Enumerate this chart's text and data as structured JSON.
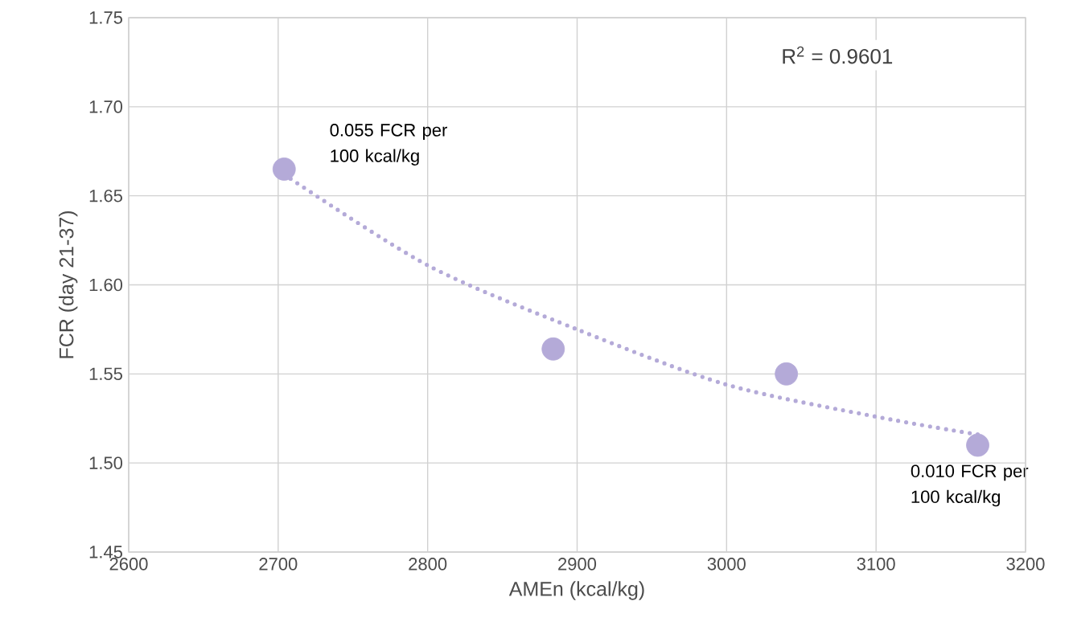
{
  "chart_data": {
    "type": "scatter",
    "xlabel": "AMEn (kcal/kg)",
    "ylabel": "FCR (day 21-37)",
    "xlim": [
      2600,
      3200
    ],
    "xticks": [
      2600,
      2700,
      2800,
      2900,
      3000,
      3100,
      3200
    ],
    "ylim": [
      1.45,
      1.75
    ],
    "yticks": [
      {
        "value": 1.45,
        "label": "1.45"
      },
      {
        "value": 1.5,
        "label": "1.50"
      },
      {
        "value": 1.55,
        "label": "1.55"
      },
      {
        "value": 1.6,
        "label": "1.60"
      },
      {
        "value": 1.65,
        "label": "1.65"
      },
      {
        "value": 1.7,
        "label": "1.70"
      },
      {
        "value": 1.75,
        "label": "1.75"
      }
    ],
    "grid": true,
    "marker": "circle",
    "series": [
      {
        "color": "#b4aad8",
        "x": [
          2704,
          2884,
          3040,
          3168
        ],
        "values": [
          1.665,
          1.564,
          1.55,
          1.51
        ]
      },
      {
        "type": "line",
        "color": "#b4aad8",
        "line_style": "dotted",
        "marker": "none",
        "x": [
          2704,
          2800,
          2900,
          3000,
          3100,
          3168
        ],
        "values": [
          1.662,
          1.611,
          1.575,
          1.544,
          1.526,
          1.516
        ]
      }
    ],
    "annotations": [
      "R$^{2}$ = 0.9601",
      {
        "text": "0.055 FCR per 100 kcal/kg",
        "x": 2704,
        "y": 1.665
      },
      {
        "text": "0.010 FCR per 100 kcal/kg",
        "x": 3168,
        "y": 1.51
      }
    ]
  }
}
